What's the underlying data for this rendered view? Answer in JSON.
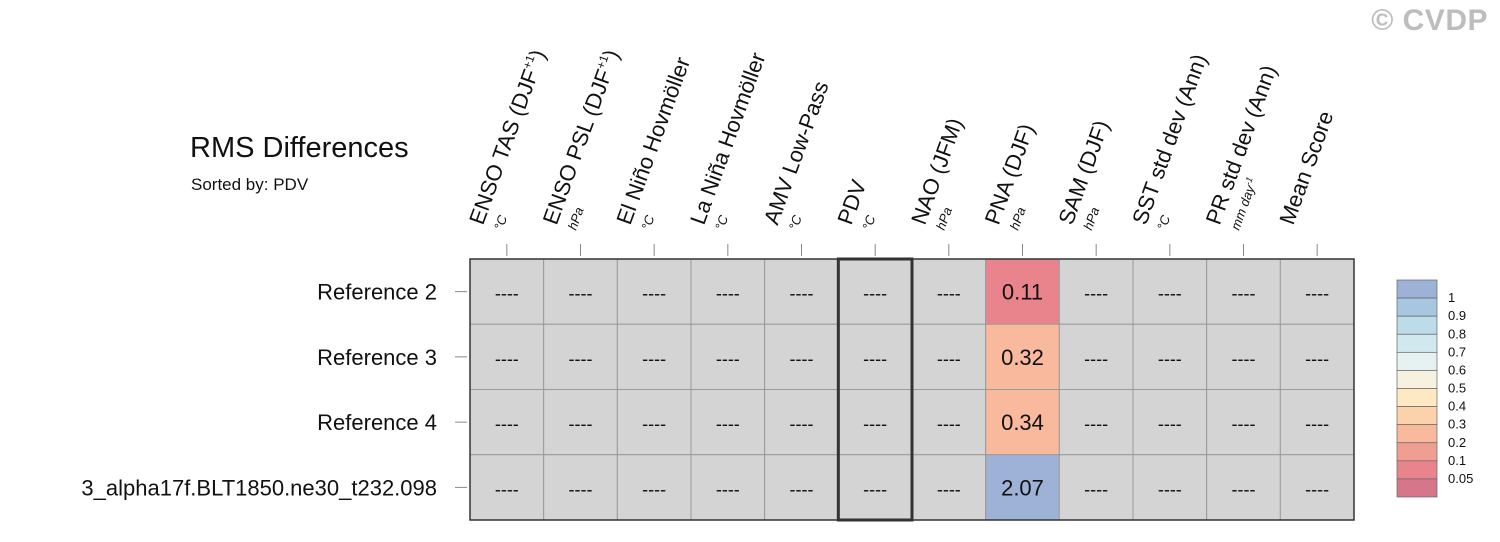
{
  "watermark": "© CVDP",
  "chart_data": {
    "type": "heatmap",
    "title": "RMS Differences",
    "subtitle": "Sorted by: PDV",
    "sorted_by": "PDV",
    "columns": [
      {
        "label": "ENSO TAS (DJF",
        "sup": "+1",
        "close": ")",
        "unit": "°C"
      },
      {
        "label": "ENSO PSL (DJF",
        "sup": "+1",
        "close": ")",
        "unit": "hPa"
      },
      {
        "label": "El Niño Hovmöller",
        "sup": "",
        "close": "",
        "unit": "°C"
      },
      {
        "label": "La Niña Hovmöller",
        "sup": "",
        "close": "",
        "unit": "°C"
      },
      {
        "label": "AMV Low-Pass",
        "sup": "",
        "close": "",
        "unit": "°C"
      },
      {
        "label": "PDV",
        "sup": "",
        "close": "",
        "unit": "°C"
      },
      {
        "label": "NAO (JFM)",
        "sup": "",
        "close": "",
        "unit": "hPa"
      },
      {
        "label": "PNA (DJF)",
        "sup": "",
        "close": "",
        "unit": "hPa"
      },
      {
        "label": "SAM (DJF)",
        "sup": "",
        "close": "",
        "unit": "hPa"
      },
      {
        "label": "SST std dev (Ann)",
        "sup": "",
        "close": "",
        "unit": "°C"
      },
      {
        "label": "PR std dev (Ann)",
        "sup": "",
        "close": "",
        "unit": "mm day",
        "unit_sup": "-1"
      },
      {
        "label": "Mean Score",
        "sup": "",
        "close": "",
        "unit": ""
      }
    ],
    "rows": [
      {
        "name": "Reference 2",
        "values": [
          null,
          null,
          null,
          null,
          null,
          null,
          null,
          0.11,
          null,
          null,
          null,
          null
        ]
      },
      {
        "name": "Reference 3",
        "values": [
          null,
          null,
          null,
          null,
          null,
          null,
          null,
          0.32,
          null,
          null,
          null,
          null
        ]
      },
      {
        "name": "Reference 4",
        "values": [
          null,
          null,
          null,
          null,
          null,
          null,
          null,
          0.34,
          null,
          null,
          null,
          null
        ]
      },
      {
        "name": "3_alpha17f.BLT1850.ne30_t232.098",
        "values": [
          null,
          null,
          null,
          null,
          null,
          null,
          null,
          2.07,
          null,
          null,
          null,
          null
        ]
      }
    ],
    "missing_text": "----",
    "missing_color": "#d4d4d4",
    "highlight_column": "PDV",
    "colorbar": {
      "labels": [
        "1",
        "0.9",
        "0.8",
        "0.7",
        "0.6",
        "0.5",
        "0.4",
        "0.3",
        "0.2",
        "0.1",
        "0.05"
      ],
      "colors": [
        "#9eb1d6",
        "#a7c6e0",
        "#bcdcea",
        "#d2e8ef",
        "#e6f1f1",
        "#f6f2df",
        "#fde9c4",
        "#fcd2ab",
        "#f8b99d",
        "#f19e92",
        "#e9838c",
        "#d7768a"
      ]
    }
  }
}
